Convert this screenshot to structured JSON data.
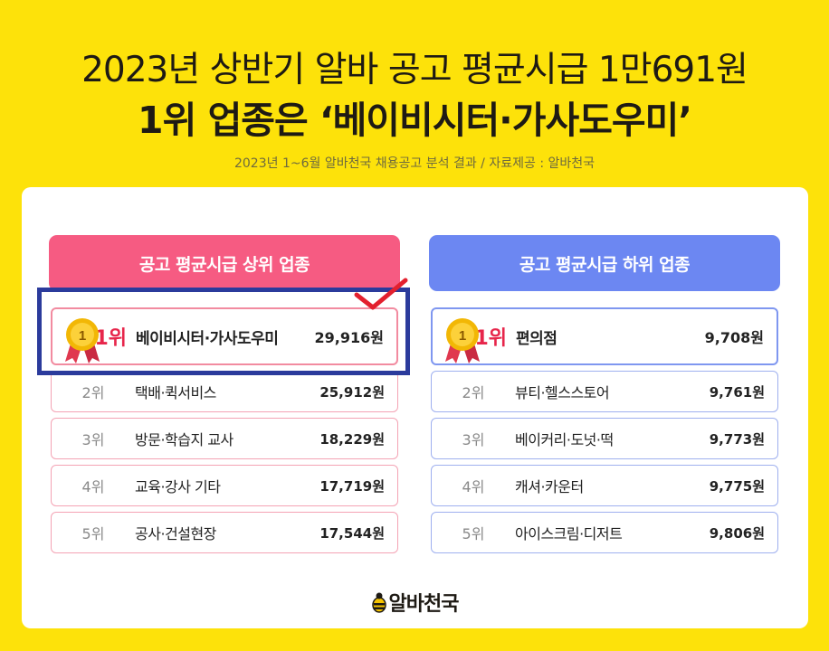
{
  "header": {
    "title_line1": "2023년 상반기 알바 공고 평균시급 1만691원",
    "title_line2": "1위 업종은 ‘베이비시터·가사도우미’",
    "subtitle": "2023년 1~6월 알바천국 채용공고 분석 결과 / 자료제공 : 알바천국"
  },
  "top_ranking": {
    "header": "공고 평균시급 상위 업종",
    "rows": [
      {
        "rank": "1위",
        "medal": "1",
        "industry": "베이비시터·가사도우미",
        "wage": "29,916원"
      },
      {
        "rank": "2위",
        "industry": "택배·퀵서비스",
        "wage": "25,912원"
      },
      {
        "rank": "3위",
        "industry": "방문·학습지 교사",
        "wage": "18,229원"
      },
      {
        "rank": "4위",
        "industry": "교육·강사 기타",
        "wage": "17,719원"
      },
      {
        "rank": "5위",
        "industry": "공사·건설현장",
        "wage": "17,544원"
      }
    ]
  },
  "bottom_ranking": {
    "header": "공고 평균시급 하위 업종",
    "rows": [
      {
        "rank": "1위",
        "medal": "1",
        "industry": "편의점",
        "wage": "9,708원"
      },
      {
        "rank": "2위",
        "industry": "뷰티·헬스스토어",
        "wage": "9,761원"
      },
      {
        "rank": "3위",
        "industry": "베이커리·도넛·떡",
        "wage": "9,773원"
      },
      {
        "rank": "4위",
        "industry": "캐셔·카운터",
        "wage": "9,775원"
      },
      {
        "rank": "5위",
        "industry": "아이스크림·디저트",
        "wage": "9,806원"
      }
    ]
  },
  "footer": {
    "brand": "알바천국"
  },
  "colors": {
    "background": "#fde20a",
    "top_accent": "#f65b82",
    "bottom_accent": "#6c87f2",
    "rank1_text": "#e7264b",
    "annotation_box": "#2b3b9c",
    "annotation_check": "#e3202e"
  },
  "icons": {
    "medal": "gold-medal-icon",
    "check": "checkmark-icon",
    "brand_logo": "bee-logo-icon"
  }
}
